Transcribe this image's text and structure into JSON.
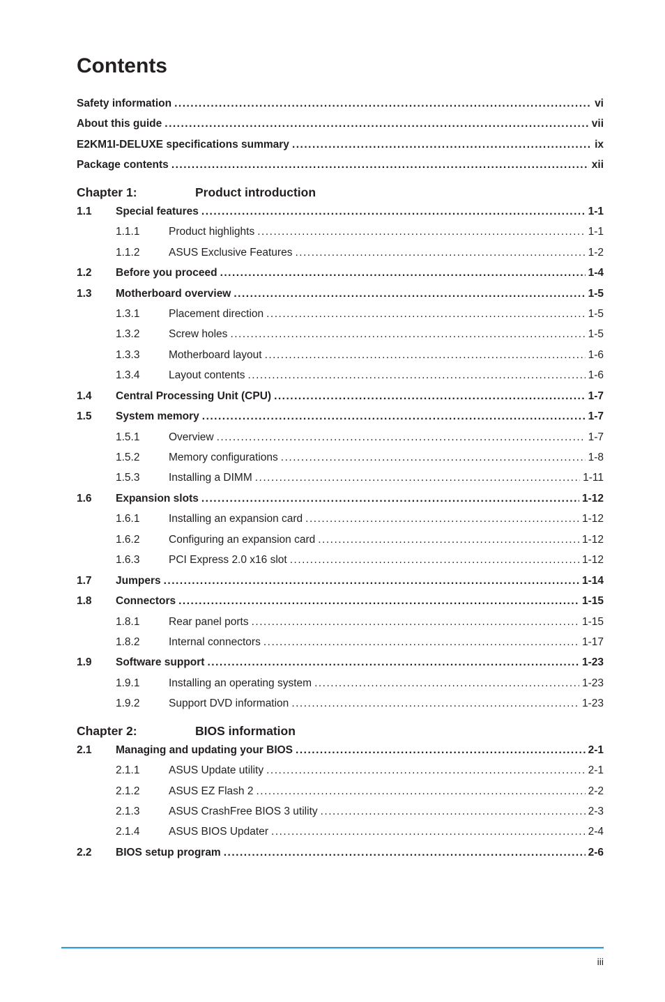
{
  "title": "Contents",
  "front": [
    {
      "label": "Safety information",
      "page": "vi"
    },
    {
      "label": "About this guide",
      "page": "vii"
    },
    {
      "label": "E2KM1I-DELUXE specifications summary",
      "page": "ix"
    },
    {
      "label": "Package contents",
      "page": "xii"
    }
  ],
  "chapters": [
    {
      "chapLabel": "Chapter 1:",
      "chapTitle": "Product introduction",
      "rows": [
        {
          "type": "sec",
          "num": "1.1",
          "label": "Special features",
          "page": "1-1"
        },
        {
          "type": "sub",
          "num": "1.1.1",
          "label": "Product highlights",
          "page": "1-1"
        },
        {
          "type": "sub",
          "num": "1.1.2",
          "label": "ASUS Exclusive Features",
          "page": "1-2"
        },
        {
          "type": "sec",
          "num": "1.2",
          "label": "Before you proceed",
          "page": "1-4"
        },
        {
          "type": "sec",
          "num": "1.3",
          "label": "Motherboard overview",
          "page": "1-5"
        },
        {
          "type": "sub",
          "num": "1.3.1",
          "label": "Placement direction",
          "page": "1-5"
        },
        {
          "type": "sub",
          "num": "1.3.2",
          "label": "Screw holes",
          "page": "1-5"
        },
        {
          "type": "sub",
          "num": "1.3.3",
          "label": "Motherboard layout",
          "page": "1-6"
        },
        {
          "type": "sub",
          "num": "1.3.4",
          "label": "Layout contents",
          "page": "1-6"
        },
        {
          "type": "sec",
          "num": "1.4",
          "label": "Central Processing Unit (CPU)",
          "page": "1-7"
        },
        {
          "type": "sec",
          "num": "1.5",
          "label": "System memory",
          "page": "1-7"
        },
        {
          "type": "sub",
          "num": "1.5.1",
          "label": "Overview",
          "page": "1-7"
        },
        {
          "type": "sub",
          "num": "1.5.2",
          "label": "Memory configurations",
          "page": "1-8"
        },
        {
          "type": "sub",
          "num": "1.5.3",
          "label": "Installing a DIMM",
          "page": "1-11"
        },
        {
          "type": "sec",
          "num": "1.6",
          "label": "Expansion slots",
          "page": "1-12"
        },
        {
          "type": "sub",
          "num": "1.6.1",
          "label": "Installing an expansion card",
          "page": "1-12"
        },
        {
          "type": "sub",
          "num": "1.6.2",
          "label": "Configuring an expansion card",
          "page": "1-12"
        },
        {
          "type": "sub",
          "num": "1.6.3",
          "label": "PCI Express 2.0 x16 slot",
          "page": "1-12"
        },
        {
          "type": "sec",
          "num": "1.7",
          "label": "Jumpers",
          "page": "1-14"
        },
        {
          "type": "sec",
          "num": "1.8",
          "label": "Connectors",
          "page": "1-15"
        },
        {
          "type": "sub",
          "num": "1.8.1",
          "label": "Rear panel ports",
          "page": "1-15"
        },
        {
          "type": "sub",
          "num": "1.8.2",
          "label": "Internal connectors",
          "page": "1-17"
        },
        {
          "type": "sec",
          "num": "1.9",
          "label": "Software support",
          "page": "1-23"
        },
        {
          "type": "sub",
          "num": "1.9.1",
          "label": "Installing an operating system",
          "page": "1-23"
        },
        {
          "type": "sub",
          "num": "1.9.2",
          "label": "Support DVD information",
          "page": "1-23"
        }
      ]
    },
    {
      "chapLabel": "Chapter 2:",
      "chapTitle": "BIOS information",
      "rows": [
        {
          "type": "sec",
          "num": "2.1",
          "label": "Managing and updating your BIOS",
          "page": "2-1"
        },
        {
          "type": "sub",
          "num": "2.1.1",
          "label": "ASUS Update utility",
          "page": "2-1"
        },
        {
          "type": "sub",
          "num": "2.1.2",
          "label": "ASUS EZ Flash 2",
          "page": "2-2"
        },
        {
          "type": "sub",
          "num": "2.1.3",
          "label": "ASUS CrashFree BIOS 3 utility",
          "page": "2-3"
        },
        {
          "type": "sub",
          "num": "2.1.4",
          "label": "ASUS BIOS Updater",
          "page": "2-4"
        },
        {
          "type": "sec",
          "num": "2.2",
          "label": "BIOS setup program",
          "page": "2-6"
        }
      ]
    }
  ],
  "footerPage": "iii"
}
